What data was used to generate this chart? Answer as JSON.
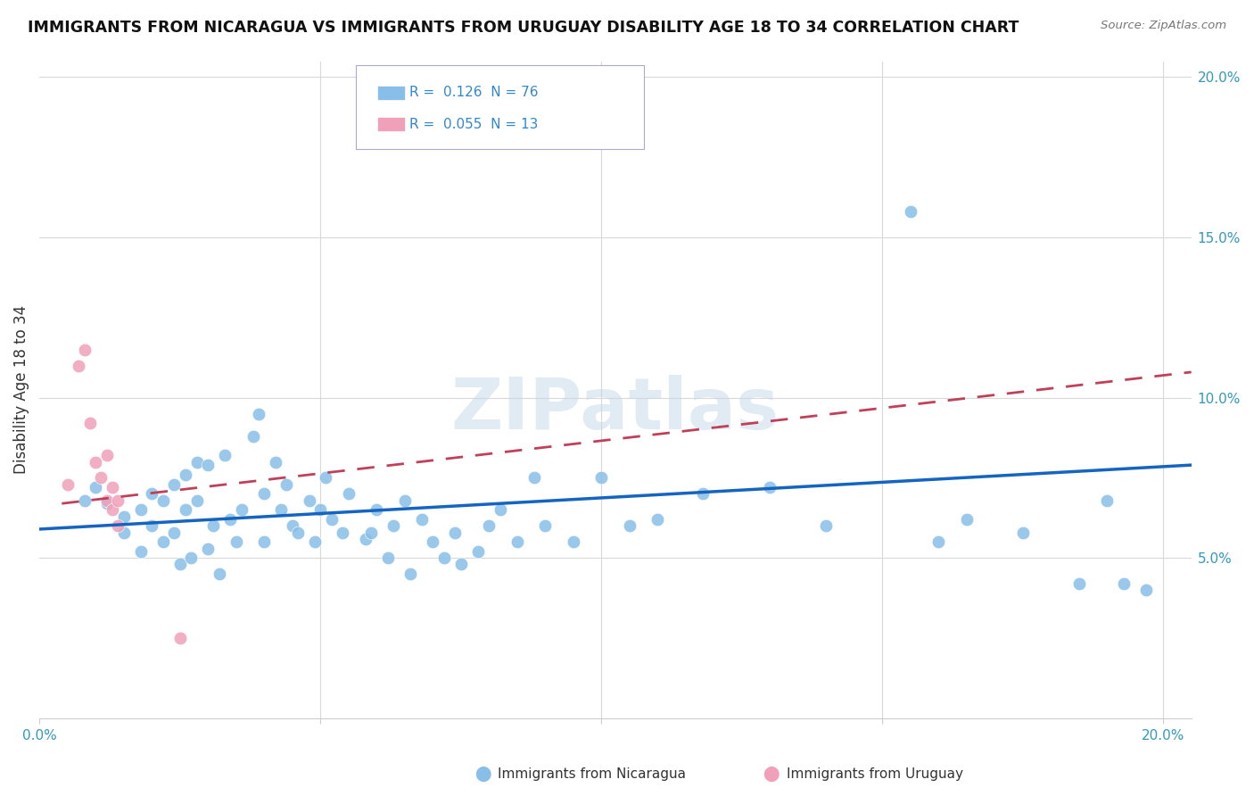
{
  "title": "IMMIGRANTS FROM NICARAGUA VS IMMIGRANTS FROM URUGUAY DISABILITY AGE 18 TO 34 CORRELATION CHART",
  "source": "Source: ZipAtlas.com",
  "ylabel": "Disability Age 18 to 34",
  "xlim": [
    0.0,
    0.205
  ],
  "ylim": [
    0.0,
    0.205
  ],
  "watermark": "ZIPatlas",
  "nicaragua_color": "#88bfe8",
  "uruguay_color": "#f0a0b8",
  "nicaragua_label": "Immigrants from Nicaragua",
  "uruguay_label": "Immigrants from Uruguay",
  "trend_nicaragua_color": "#1565c0",
  "trend_uruguay_color": "#c0405a",
  "nicaragua_x": [
    0.008,
    0.01,
    0.012,
    0.015,
    0.015,
    0.018,
    0.018,
    0.02,
    0.02,
    0.022,
    0.022,
    0.024,
    0.024,
    0.025,
    0.026,
    0.026,
    0.027,
    0.028,
    0.028,
    0.03,
    0.03,
    0.031,
    0.032,
    0.033,
    0.034,
    0.035,
    0.036,
    0.038,
    0.039,
    0.04,
    0.04,
    0.042,
    0.043,
    0.044,
    0.045,
    0.046,
    0.048,
    0.049,
    0.05,
    0.051,
    0.052,
    0.054,
    0.055,
    0.058,
    0.059,
    0.06,
    0.062,
    0.063,
    0.065,
    0.066,
    0.068,
    0.07,
    0.072,
    0.074,
    0.075,
    0.078,
    0.08,
    0.082,
    0.085,
    0.088,
    0.09,
    0.095,
    0.1,
    0.105,
    0.11,
    0.118,
    0.13,
    0.14,
    0.155,
    0.16,
    0.165,
    0.175,
    0.185,
    0.19,
    0.193,
    0.197
  ],
  "nicaragua_y": [
    0.068,
    0.072,
    0.067,
    0.063,
    0.058,
    0.065,
    0.052,
    0.07,
    0.06,
    0.068,
    0.055,
    0.073,
    0.058,
    0.048,
    0.076,
    0.065,
    0.05,
    0.08,
    0.068,
    0.053,
    0.079,
    0.06,
    0.045,
    0.082,
    0.062,
    0.055,
    0.065,
    0.088,
    0.095,
    0.07,
    0.055,
    0.08,
    0.065,
    0.073,
    0.06,
    0.058,
    0.068,
    0.055,
    0.065,
    0.075,
    0.062,
    0.058,
    0.07,
    0.056,
    0.058,
    0.065,
    0.05,
    0.06,
    0.068,
    0.045,
    0.062,
    0.055,
    0.05,
    0.058,
    0.048,
    0.052,
    0.06,
    0.065,
    0.055,
    0.075,
    0.06,
    0.055,
    0.075,
    0.06,
    0.062,
    0.07,
    0.072,
    0.06,
    0.158,
    0.055,
    0.062,
    0.058,
    0.042,
    0.068,
    0.042,
    0.04
  ],
  "uruguay_x": [
    0.005,
    0.007,
    0.008,
    0.009,
    0.01,
    0.011,
    0.012,
    0.012,
    0.013,
    0.013,
    0.014,
    0.014,
    0.025
  ],
  "uruguay_y": [
    0.073,
    0.11,
    0.115,
    0.092,
    0.08,
    0.075,
    0.082,
    0.068,
    0.072,
    0.065,
    0.068,
    0.06,
    0.025
  ],
  "nicaragua_trend": [
    0.0,
    0.205,
    0.059,
    0.079
  ],
  "uruguay_trend": [
    0.004,
    0.205,
    0.067,
    0.108
  ],
  "grid_color": "#d8d8d8",
  "dot_size": 110,
  "legend_r1": "R =  0.126  N = 76",
  "legend_r2": "R =  0.055  N = 13"
}
